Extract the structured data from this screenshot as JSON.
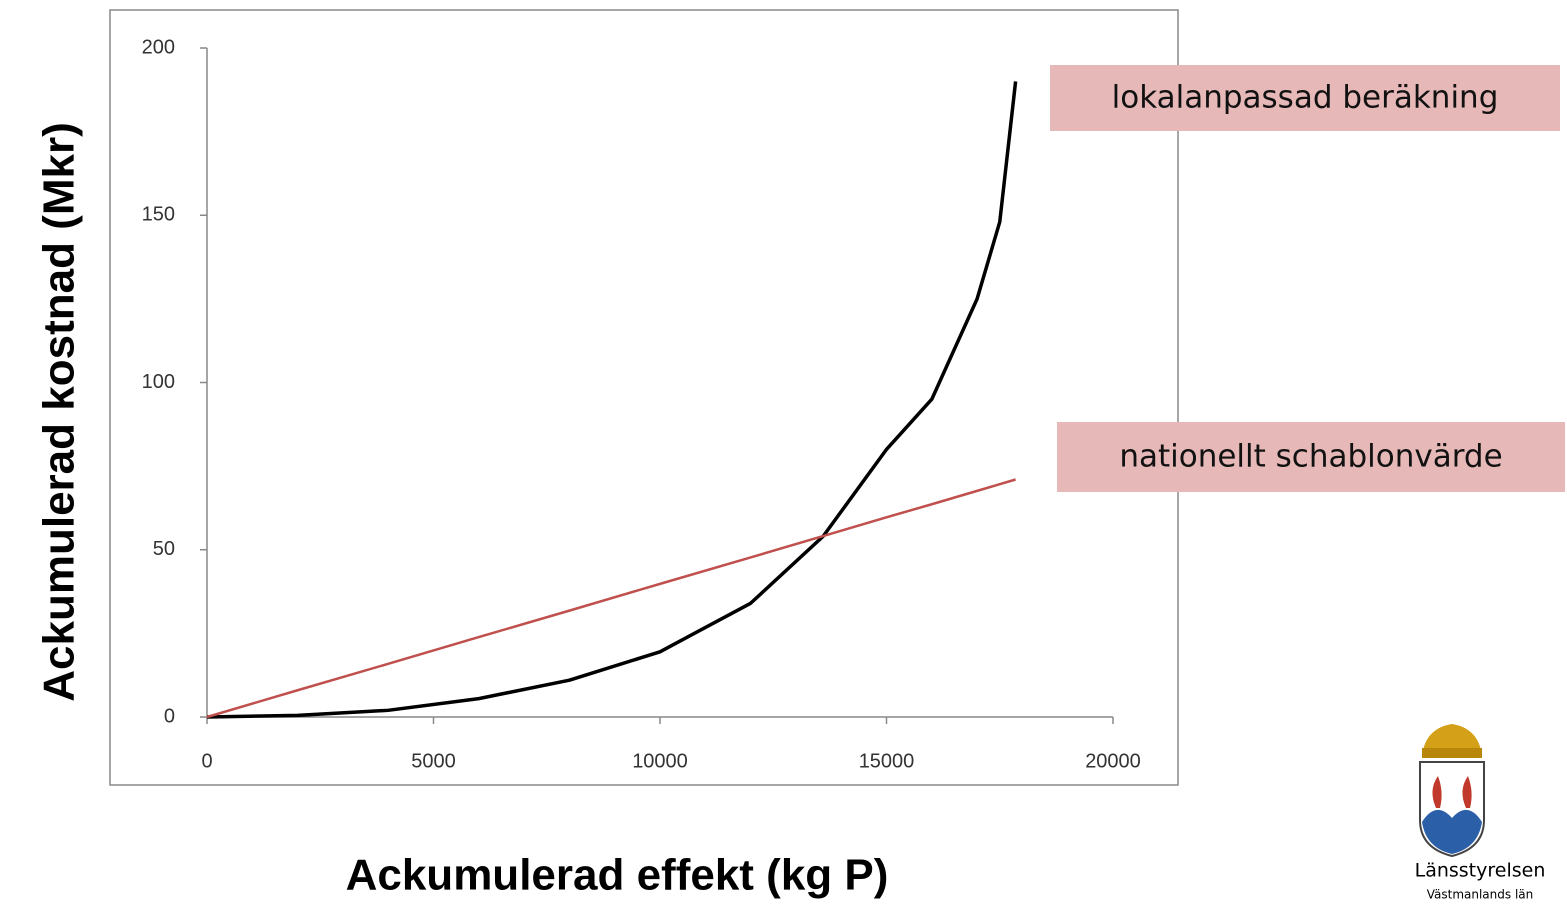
{
  "chart_data": {
    "type": "line",
    "xlabel": "Ackumulerad effekt (kg P)",
    "ylabel": "Ackumulerad kostnad (Mkr)",
    "x": [
      0,
      2000,
      4000,
      6000,
      8000,
      10000,
      12000,
      13600,
      15000,
      16000,
      17000,
      17500,
      17850
    ],
    "series": [
      {
        "color": "#000000",
        "values": [
          0,
          0.5,
          2,
          5.5,
          11,
          19.5,
          34,
          54,
          80,
          95,
          125,
          148,
          190
        ]
      },
      {
        "color": "#c0504d",
        "values": [
          0,
          8,
          15.9,
          23.9,
          31.8,
          39.8,
          47.7,
          54.1,
          59.7,
          63.6,
          67.6,
          69.6,
          71
        ]
      }
    ],
    "xlim": [
      0,
      20000
    ],
    "xticks": [
      0,
      5000,
      10000,
      15000,
      20000
    ],
    "ylim": [
      0,
      200
    ],
    "yticks": [
      0,
      50,
      100,
      150,
      200
    ],
    "grid": false,
    "annotations": [
      {
        "text": "lokalanpassad beräkning"
      },
      {
        "text": "nationellt schablonvärde"
      }
    ],
    "logo": {
      "name": "Länsstyrelsen",
      "region": "Västmanlands län"
    }
  }
}
